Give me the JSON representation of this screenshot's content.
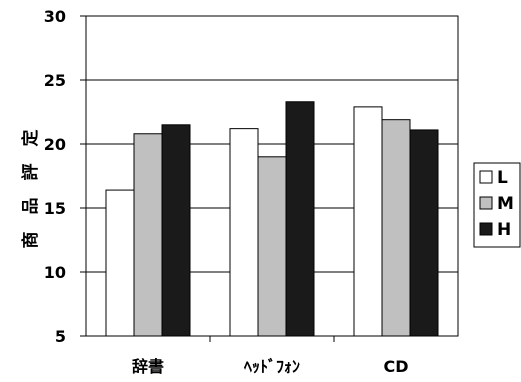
{
  "chart_data": {
    "type": "bar",
    "categories": [
      "辞書",
      "ﾍｯﾄﾞﾌｫﾝ",
      "CD"
    ],
    "series": [
      {
        "name": "L",
        "values": [
          16.4,
          21.2,
          22.9
        ],
        "color": "#ffffff"
      },
      {
        "name": "M",
        "values": [
          20.8,
          19.0,
          21.9
        ],
        "color": "#c0c0c0"
      },
      {
        "name": "H",
        "values": [
          21.5,
          23.3,
          21.1
        ],
        "color": "#1a1a1a"
      }
    ],
    "ylabel": "商品評定",
    "ylim": [
      5,
      30
    ],
    "yticks": [
      5,
      10,
      15,
      20,
      25,
      30
    ],
    "grid": true,
    "legend": "right"
  }
}
